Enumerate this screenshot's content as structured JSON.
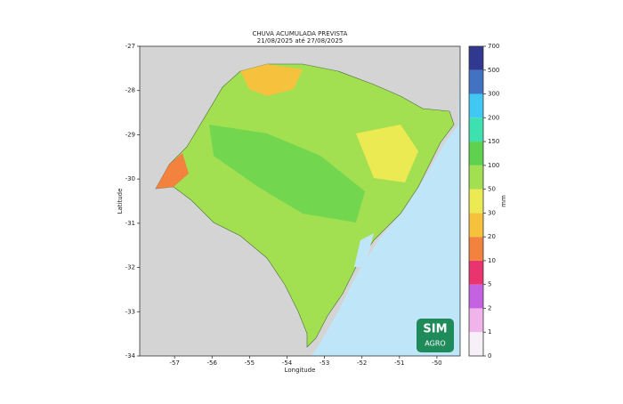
{
  "map": {
    "title": [
      "CHUVA ACUMULADA PREVISTA",
      "21/08/2025 até 27/08/2025"
    ],
    "xaxis": {
      "label": "Longitude",
      "lim": [
        -57.93,
        -49.38
      ],
      "ticks": [
        -57,
        -56,
        -55,
        -54,
        -53,
        -52,
        -51,
        -50
      ]
    },
    "yaxis": {
      "label": "Latitude",
      "lim": [
        -34,
        -27
      ],
      "ticks": [
        -34,
        -33,
        -32,
        -31,
        -30,
        -29,
        -28,
        -27
      ]
    },
    "colorbar": {
      "label": "mm",
      "bounds": [
        0,
        1,
        2,
        5,
        10,
        20,
        30,
        50,
        100,
        150,
        200,
        300,
        500,
        700
      ],
      "colors": [
        "#f8f0f8",
        "#f0b4ea",
        "#c462e2",
        "#ea3470",
        "#f2823e",
        "#f6c23e",
        "#ecea52",
        "#a2e052",
        "#5ed24e",
        "#3ee0b0",
        "#40c8f2",
        "#4272c2",
        "#30398f"
      ]
    },
    "logo": {
      "top": "SIM",
      "bottom": "AGRO"
    }
  }
}
